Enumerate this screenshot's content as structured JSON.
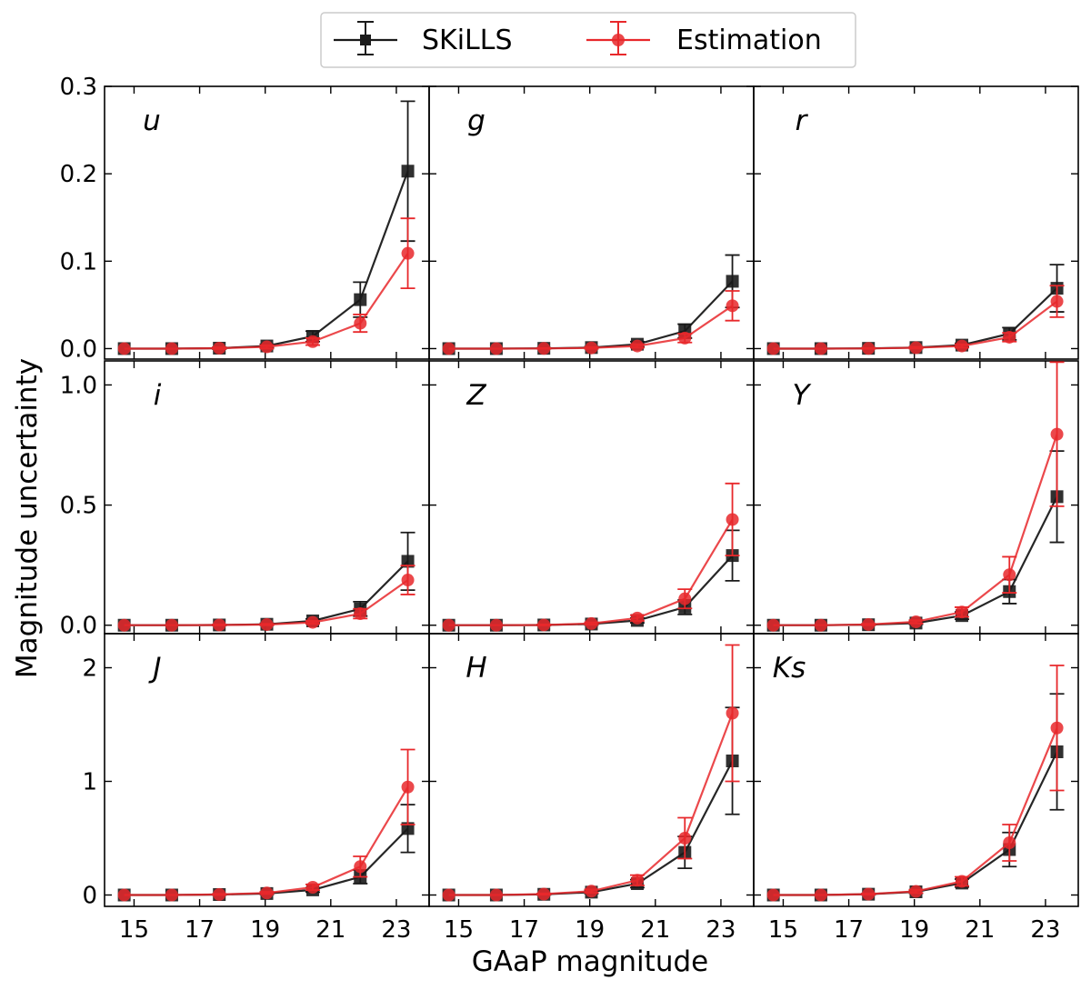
{
  "xlabel": "GAaP magnitude",
  "ylabel": "Magnitude uncertainty",
  "legend": {
    "position": "top-center",
    "entries": [
      {
        "name": "SKiLLS",
        "color": "#1a1a1a",
        "marker": "square"
      },
      {
        "name": "Estimation",
        "color": "#e8282b",
        "marker": "circle"
      }
    ]
  },
  "chart_data": [
    {
      "type": "line",
      "panel_label": "u",
      "x": [
        14.7,
        16.15,
        17.6,
        19.05,
        20.45,
        21.9,
        23.35
      ],
      "xticks": [
        15,
        17,
        19,
        21,
        23
      ],
      "xlim": [
        14.1,
        24.0
      ],
      "ylim": [
        -0.012,
        0.3
      ],
      "yticks": [
        0.0,
        0.1,
        0.2,
        0.3
      ],
      "ytick_labels": [
        "0.0",
        "0.1",
        "0.2",
        "0.3"
      ],
      "series": [
        {
          "name": "SKiLLS",
          "values": [
            0.0,
            0.0,
            0.0005,
            0.003,
            0.014,
            0.056,
            0.203
          ],
          "errors": [
            0.0,
            0.0,
            0.001,
            0.002,
            0.006,
            0.02,
            0.08
          ]
        },
        {
          "name": "Estimation",
          "values": [
            0.0,
            0.0,
            0.0005,
            0.002,
            0.008,
            0.029,
            0.109
          ],
          "errors": [
            0.0,
            0.0,
            0.001,
            0.002,
            0.004,
            0.01,
            0.04
          ]
        }
      ]
    },
    {
      "type": "line",
      "panel_label": "g",
      "x": [
        14.7,
        16.15,
        17.6,
        19.05,
        20.45,
        21.9,
        23.35
      ],
      "xticks": [
        15,
        17,
        19,
        21,
        23
      ],
      "xlim": [
        14.1,
        24.0
      ],
      "ylim": [
        -0.012,
        0.3
      ],
      "yticks": [
        0.0,
        0.1,
        0.2,
        0.3
      ],
      "series": [
        {
          "name": "SKiLLS",
          "values": [
            0.0,
            0.0,
            0.0003,
            0.0012,
            0.005,
            0.02,
            0.077
          ],
          "errors": [
            0.0,
            0.0,
            0.0005,
            0.001,
            0.003,
            0.008,
            0.03
          ]
        },
        {
          "name": "Estimation",
          "values": [
            0.0,
            0.0,
            0.0002,
            0.0008,
            0.003,
            0.012,
            0.049
          ],
          "errors": [
            0.0,
            0.0,
            0.0005,
            0.001,
            0.002,
            0.005,
            0.017
          ]
        }
      ]
    },
    {
      "type": "line",
      "panel_label": "r",
      "x": [
        14.7,
        16.15,
        17.6,
        19.05,
        20.45,
        21.9,
        23.35
      ],
      "xticks": [
        15,
        17,
        19,
        21,
        23
      ],
      "xlim": [
        14.1,
        24.0
      ],
      "ylim": [
        -0.012,
        0.3
      ],
      "yticks": [
        0.0,
        0.1,
        0.2,
        0.3
      ],
      "series": [
        {
          "name": "SKiLLS",
          "values": [
            0.0,
            0.0,
            0.0003,
            0.0012,
            0.004,
            0.017,
            0.069
          ],
          "errors": [
            0.0,
            0.0,
            0.0005,
            0.001,
            0.002,
            0.007,
            0.027
          ]
        },
        {
          "name": "Estimation",
          "values": [
            0.0,
            0.0,
            0.0002,
            0.001,
            0.003,
            0.013,
            0.054
          ],
          "errors": [
            0.0,
            0.0,
            0.0005,
            0.001,
            0.002,
            0.005,
            0.018
          ]
        }
      ]
    },
    {
      "type": "line",
      "panel_label": "i",
      "x": [
        14.7,
        16.15,
        17.6,
        19.05,
        20.45,
        21.9,
        23.35
      ],
      "xticks": [
        15,
        17,
        19,
        21,
        23
      ],
      "xlim": [
        14.1,
        24.0
      ],
      "ylim": [
        -0.035,
        1.1
      ],
      "yticks": [
        0.0,
        0.5,
        1.0
      ],
      "ytick_labels": [
        "0.0",
        "0.5",
        "1.0"
      ],
      "series": [
        {
          "name": "SKiLLS",
          "values": [
            0.0,
            0.0,
            0.001,
            0.004,
            0.018,
            0.068,
            0.266
          ],
          "errors": [
            0.0,
            0.0,
            0.002,
            0.004,
            0.008,
            0.03,
            0.12
          ]
        },
        {
          "name": "Estimation",
          "values": [
            0.0,
            0.0,
            0.001,
            0.003,
            0.012,
            0.048,
            0.188
          ],
          "errors": [
            0.0,
            0.0,
            0.002,
            0.003,
            0.006,
            0.02,
            0.06
          ]
        }
      ]
    },
    {
      "type": "line",
      "panel_label": "Z",
      "x": [
        14.7,
        16.15,
        17.6,
        19.05,
        20.45,
        21.9,
        23.35
      ],
      "xticks": [
        15,
        17,
        19,
        21,
        23
      ],
      "xlim": [
        14.1,
        24.0
      ],
      "ylim": [
        -0.035,
        1.1
      ],
      "yticks": [
        0.0,
        0.5,
        1.0
      ],
      "series": [
        {
          "name": "SKiLLS",
          "values": [
            0.0,
            0.0,
            0.001,
            0.005,
            0.02,
            0.075,
            0.29
          ],
          "errors": [
            0.0,
            0.0,
            0.002,
            0.004,
            0.01,
            0.03,
            0.105
          ]
        },
        {
          "name": "Estimation",
          "values": [
            0.0,
            0.0,
            0.001,
            0.007,
            0.03,
            0.11,
            0.44
          ],
          "errors": [
            0.0,
            0.0,
            0.002,
            0.005,
            0.012,
            0.04,
            0.15
          ]
        }
      ]
    },
    {
      "type": "line",
      "panel_label": "Y",
      "x": [
        14.7,
        16.15,
        17.6,
        19.05,
        20.45,
        21.9,
        23.35
      ],
      "xticks": [
        15,
        17,
        19,
        21,
        23
      ],
      "xlim": [
        14.1,
        24.0
      ],
      "ylim": [
        -0.035,
        1.1
      ],
      "yticks": [
        0.0,
        0.5,
        1.0
      ],
      "series": [
        {
          "name": "SKiLLS",
          "values": [
            0.0,
            0.0,
            0.002,
            0.009,
            0.04,
            0.14,
            0.535
          ],
          "errors": [
            0.0,
            0.0,
            0.002,
            0.005,
            0.015,
            0.05,
            0.19
          ]
        },
        {
          "name": "Estimation",
          "values": [
            0.0,
            0.0,
            0.003,
            0.014,
            0.055,
            0.21,
            0.795
          ],
          "errors": [
            0.0,
            0.0,
            0.003,
            0.007,
            0.02,
            0.075,
            0.3
          ]
        }
      ]
    },
    {
      "type": "line",
      "panel_label": "J",
      "x": [
        14.7,
        16.15,
        17.6,
        19.05,
        20.45,
        21.9,
        23.35
      ],
      "xticks": [
        15,
        17,
        19,
        21,
        23
      ],
      "xlim": [
        14.1,
        24.0
      ],
      "ylim": [
        -0.1,
        2.3
      ],
      "yticks": [
        0,
        1,
        2
      ],
      "ytick_labels": [
        "0",
        "1",
        "2"
      ],
      "series": [
        {
          "name": "SKiLLS",
          "values": [
            0.0,
            0.0,
            0.004,
            0.013,
            0.045,
            0.16,
            0.585
          ],
          "errors": [
            0.0,
            0.0,
            0.004,
            0.008,
            0.02,
            0.06,
            0.21
          ]
        },
        {
          "name": "Estimation",
          "values": [
            0.0,
            0.0,
            0.005,
            0.018,
            0.068,
            0.25,
            0.95
          ],
          "errors": [
            0.0,
            0.0,
            0.005,
            0.01,
            0.025,
            0.09,
            0.33
          ]
        }
      ]
    },
    {
      "type": "line",
      "panel_label": "H",
      "x": [
        14.7,
        16.15,
        17.6,
        19.05,
        20.45,
        21.9,
        23.35
      ],
      "xticks": [
        15,
        17,
        19,
        21,
        23
      ],
      "xlim": [
        14.1,
        24.0
      ],
      "ylim": [
        -0.1,
        2.3
      ],
      "yticks": [
        0,
        1,
        2
      ],
      "series": [
        {
          "name": "SKiLLS",
          "values": [
            0.0,
            0.0,
            0.006,
            0.025,
            0.1,
            0.375,
            1.18
          ],
          "errors": [
            0.0,
            0.0,
            0.005,
            0.012,
            0.035,
            0.14,
            0.47
          ]
        },
        {
          "name": "Estimation",
          "values": [
            0.0,
            0.0,
            0.008,
            0.034,
            0.13,
            0.5,
            1.6
          ],
          "errors": [
            0.0,
            0.0,
            0.006,
            0.015,
            0.045,
            0.18,
            0.6
          ]
        }
      ]
    },
    {
      "type": "line",
      "panel_label": "Ks",
      "x": [
        14.7,
        16.15,
        17.6,
        19.05,
        20.45,
        21.9,
        23.35
      ],
      "xticks": [
        15,
        17,
        19,
        21,
        23
      ],
      "xlim": [
        14.1,
        24.0
      ],
      "ylim": [
        -0.1,
        2.3
      ],
      "yticks": [
        0,
        1,
        2
      ],
      "series": [
        {
          "name": "SKiLLS",
          "values": [
            0.0,
            0.0,
            0.007,
            0.028,
            0.105,
            0.4,
            1.26
          ],
          "errors": [
            0.0,
            0.0,
            0.005,
            0.013,
            0.035,
            0.15,
            0.51
          ]
        },
        {
          "name": "Estimation",
          "values": [
            0.0,
            0.0,
            0.008,
            0.032,
            0.12,
            0.46,
            1.47
          ],
          "errors": [
            0.0,
            0.0,
            0.006,
            0.015,
            0.04,
            0.16,
            0.55
          ]
        }
      ]
    }
  ]
}
